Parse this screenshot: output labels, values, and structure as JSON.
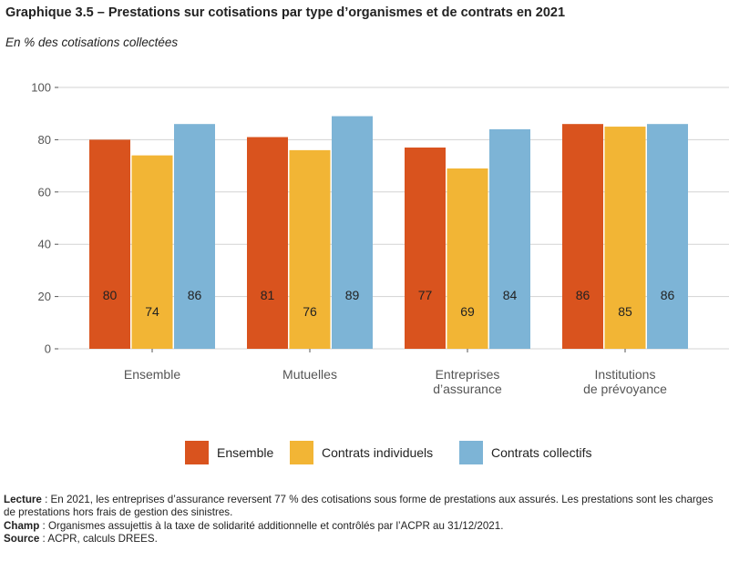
{
  "title": "Graphique 3.5 – Prestations sur cotisations par type d’organismes et de contrats en 2021",
  "subtitle": "En % des cotisations collectées",
  "colors": {
    "ensemble": "#d9531e",
    "individuels": "#f2b535",
    "collectifs": "#7db4d6",
    "grid": "#d3d3d3",
    "text": "#222222"
  },
  "chart_data": {
    "type": "bar",
    "categories": [
      [
        "Ensemble"
      ],
      [
        "Mutuelles"
      ],
      [
        "Entreprises",
        "d’assurance"
      ],
      [
        "Institutions",
        "de prévoyance"
      ]
    ],
    "series": [
      {
        "name": "Ensemble",
        "values": [
          80,
          81,
          77,
          86
        ]
      },
      {
        "name": "Contrats individuels",
        "values": [
          74,
          76,
          69,
          85
        ]
      },
      {
        "name": "Contrats collectifs",
        "values": [
          86,
          89,
          84,
          86
        ]
      }
    ],
    "yticks": [
      0,
      20,
      40,
      60,
      80,
      100
    ],
    "ylim": [
      0,
      100
    ],
    "grid": true,
    "legend_position": "bottom"
  },
  "notes": {
    "lecture_label": "Lecture",
    "lecture_text": " : En 2021, les entreprises d’assurance reversent 77 % des cotisations sous forme de prestations aux assurés. Les prestations sont les charges de prestations hors frais de gestion des sinistres.",
    "champ_label": "Champ",
    "champ_text": " : Organismes assujettis à la taxe de solidarité additionnelle et contrôlés par l’ACPR au 31/12/2021.",
    "source_label": "Source",
    "source_text": " : ACPR, calculs DREES."
  }
}
